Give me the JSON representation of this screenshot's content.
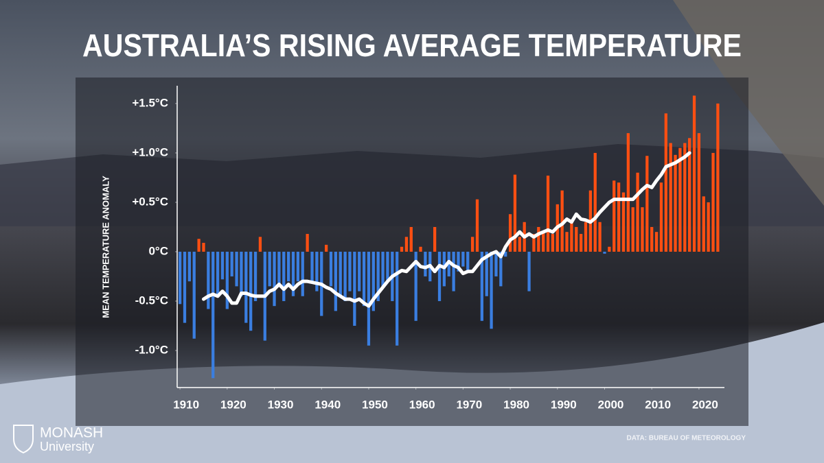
{
  "chart_data": {
    "type": "bar",
    "title": "AUSTRALIA’S RISING AVERAGE TEMPERATURE",
    "y_label": "MEAN TEMPERATURE ANOMALY",
    "source": "DATA: BUREAU OF METEOROLOGY",
    "logo": {
      "name": "MONASH",
      "subtitle": "University"
    },
    "xlim": [
      1909.4,
      2025.4
    ],
    "xticks": [
      1910,
      1920,
      1930,
      1940,
      1950,
      1960,
      1970,
      1980,
      1990,
      2000,
      2010,
      2020
    ],
    "ylim": [
      -1.375,
      1.68
    ],
    "yticks": [
      {
        "value": -1.0,
        "label": "-1.0°C"
      },
      {
        "value": -0.5,
        "label": "-0.5°C"
      },
      {
        "value": 0,
        "label": "0°C"
      },
      {
        "value": 0.5,
        "label": "+0.5°C"
      },
      {
        "value": 1.0,
        "label": "+1.0°C"
      },
      {
        "value": 1.5,
        "label": "+1.5°C"
      }
    ],
    "positive_color": "#ff4f12",
    "negative_color": "#3a7ee0",
    "x": [
      1910,
      1911,
      1912,
      1913,
      1914,
      1915,
      1916,
      1917,
      1918,
      1919,
      1920,
      1921,
      1922,
      1923,
      1924,
      1925,
      1926,
      1927,
      1928,
      1929,
      1930,
      1931,
      1932,
      1933,
      1934,
      1935,
      1936,
      1937,
      1938,
      1939,
      1940,
      1941,
      1942,
      1943,
      1944,
      1945,
      1946,
      1947,
      1948,
      1949,
      1950,
      1951,
      1952,
      1953,
      1954,
      1955,
      1956,
      1957,
      1958,
      1959,
      1960,
      1961,
      1962,
      1963,
      1964,
      1965,
      1966,
      1967,
      1968,
      1969,
      1970,
      1971,
      1972,
      1973,
      1974,
      1975,
      1976,
      1977,
      1978,
      1979,
      1980,
      1981,
      1982,
      1983,
      1984,
      1985,
      1986,
      1987,
      1988,
      1989,
      1990,
      1991,
      1992,
      1993,
      1994,
      1995,
      1996,
      1997,
      1998,
      1999,
      2000,
      2001,
      2002,
      2003,
      2004,
      2005,
      2006,
      2007,
      2008,
      2009,
      2010,
      2011,
      2012,
      2013,
      2014,
      2015,
      2016,
      2017,
      2018,
      2019,
      2020,
      2021,
      2022,
      2023,
      2024
    ],
    "bars": {
      "values": [
        -0.53,
        -0.72,
        -0.3,
        -0.88,
        0.13,
        0.09,
        -0.58,
        -1.28,
        -0.45,
        -0.28,
        -0.58,
        -0.25,
        -0.35,
        -0.45,
        -0.72,
        -0.8,
        -0.5,
        0.15,
        -0.9,
        -0.35,
        -0.55,
        -0.35,
        -0.5,
        -0.3,
        -0.45,
        -0.3,
        -0.45,
        0.18,
        -0.3,
        -0.4,
        -0.65,
        0.07,
        -0.35,
        -0.6,
        -0.45,
        -0.5,
        -0.4,
        -0.75,
        -0.4,
        -0.55,
        -0.95,
        -0.6,
        -0.5,
        -0.35,
        -0.3,
        -0.5,
        -0.95,
        0.05,
        0.15,
        0.25,
        -0.7,
        0.05,
        -0.25,
        -0.3,
        0.25,
        -0.5,
        -0.35,
        -0.25,
        -0.4,
        -0.2,
        -0.15,
        -0.2,
        0.15,
        0.53,
        -0.7,
        -0.45,
        -0.78,
        -0.25,
        -0.35,
        -0.05,
        0.38,
        0.78,
        0.15,
        0.3,
        -0.4,
        0.18,
        0.25,
        0.2,
        0.77,
        0.18,
        0.48,
        0.62,
        0.2,
        0.3,
        0.25,
        0.18,
        0.3,
        0.62,
        1.0,
        0.3,
        -0.02,
        0.05,
        0.72,
        0.7,
        0.6,
        1.2,
        0.45,
        0.8,
        0.45,
        0.97,
        0.25,
        0.2,
        0.7,
        1.4,
        1.1,
        0.98,
        1.05,
        1.1,
        1.15,
        1.58,
        1.2,
        0.56,
        0.5,
        1.0,
        1.5
      ]
    },
    "trend": {
      "color": "#ffffff",
      "values": [
        null,
        null,
        null,
        null,
        null,
        -0.48,
        -0.45,
        -0.43,
        -0.45,
        -0.4,
        -0.45,
        -0.52,
        -0.52,
        -0.42,
        -0.42,
        -0.44,
        -0.45,
        -0.45,
        -0.45,
        -0.4,
        -0.38,
        -0.33,
        -0.38,
        -0.33,
        -0.38,
        -0.33,
        -0.3,
        -0.3,
        -0.31,
        -0.32,
        -0.33,
        -0.36,
        -0.38,
        -0.42,
        -0.45,
        -0.48,
        -0.48,
        -0.5,
        -0.48,
        -0.52,
        -0.55,
        -0.48,
        -0.42,
        -0.36,
        -0.3,
        -0.25,
        -0.22,
        -0.19,
        -0.2,
        -0.15,
        -0.1,
        -0.15,
        -0.16,
        -0.14,
        -0.2,
        -0.14,
        -0.16,
        -0.1,
        -0.14,
        -0.16,
        -0.22,
        -0.2,
        -0.2,
        -0.14,
        -0.08,
        -0.05,
        -0.02,
        0.0,
        -0.05,
        0.05,
        0.12,
        0.15,
        0.2,
        0.15,
        0.18,
        0.15,
        0.18,
        0.2,
        0.22,
        0.2,
        0.25,
        0.28,
        0.33,
        0.3,
        0.38,
        0.33,
        0.32,
        0.3,
        0.34,
        0.4,
        0.45,
        0.5,
        0.53,
        0.53,
        0.53,
        0.53,
        0.53,
        0.58,
        0.63,
        0.67,
        0.65,
        0.72,
        0.78,
        0.86,
        0.88,
        0.9,
        0.93,
        0.96,
        1.0,
        null,
        null,
        null,
        null,
        null,
        null
      ]
    }
  }
}
